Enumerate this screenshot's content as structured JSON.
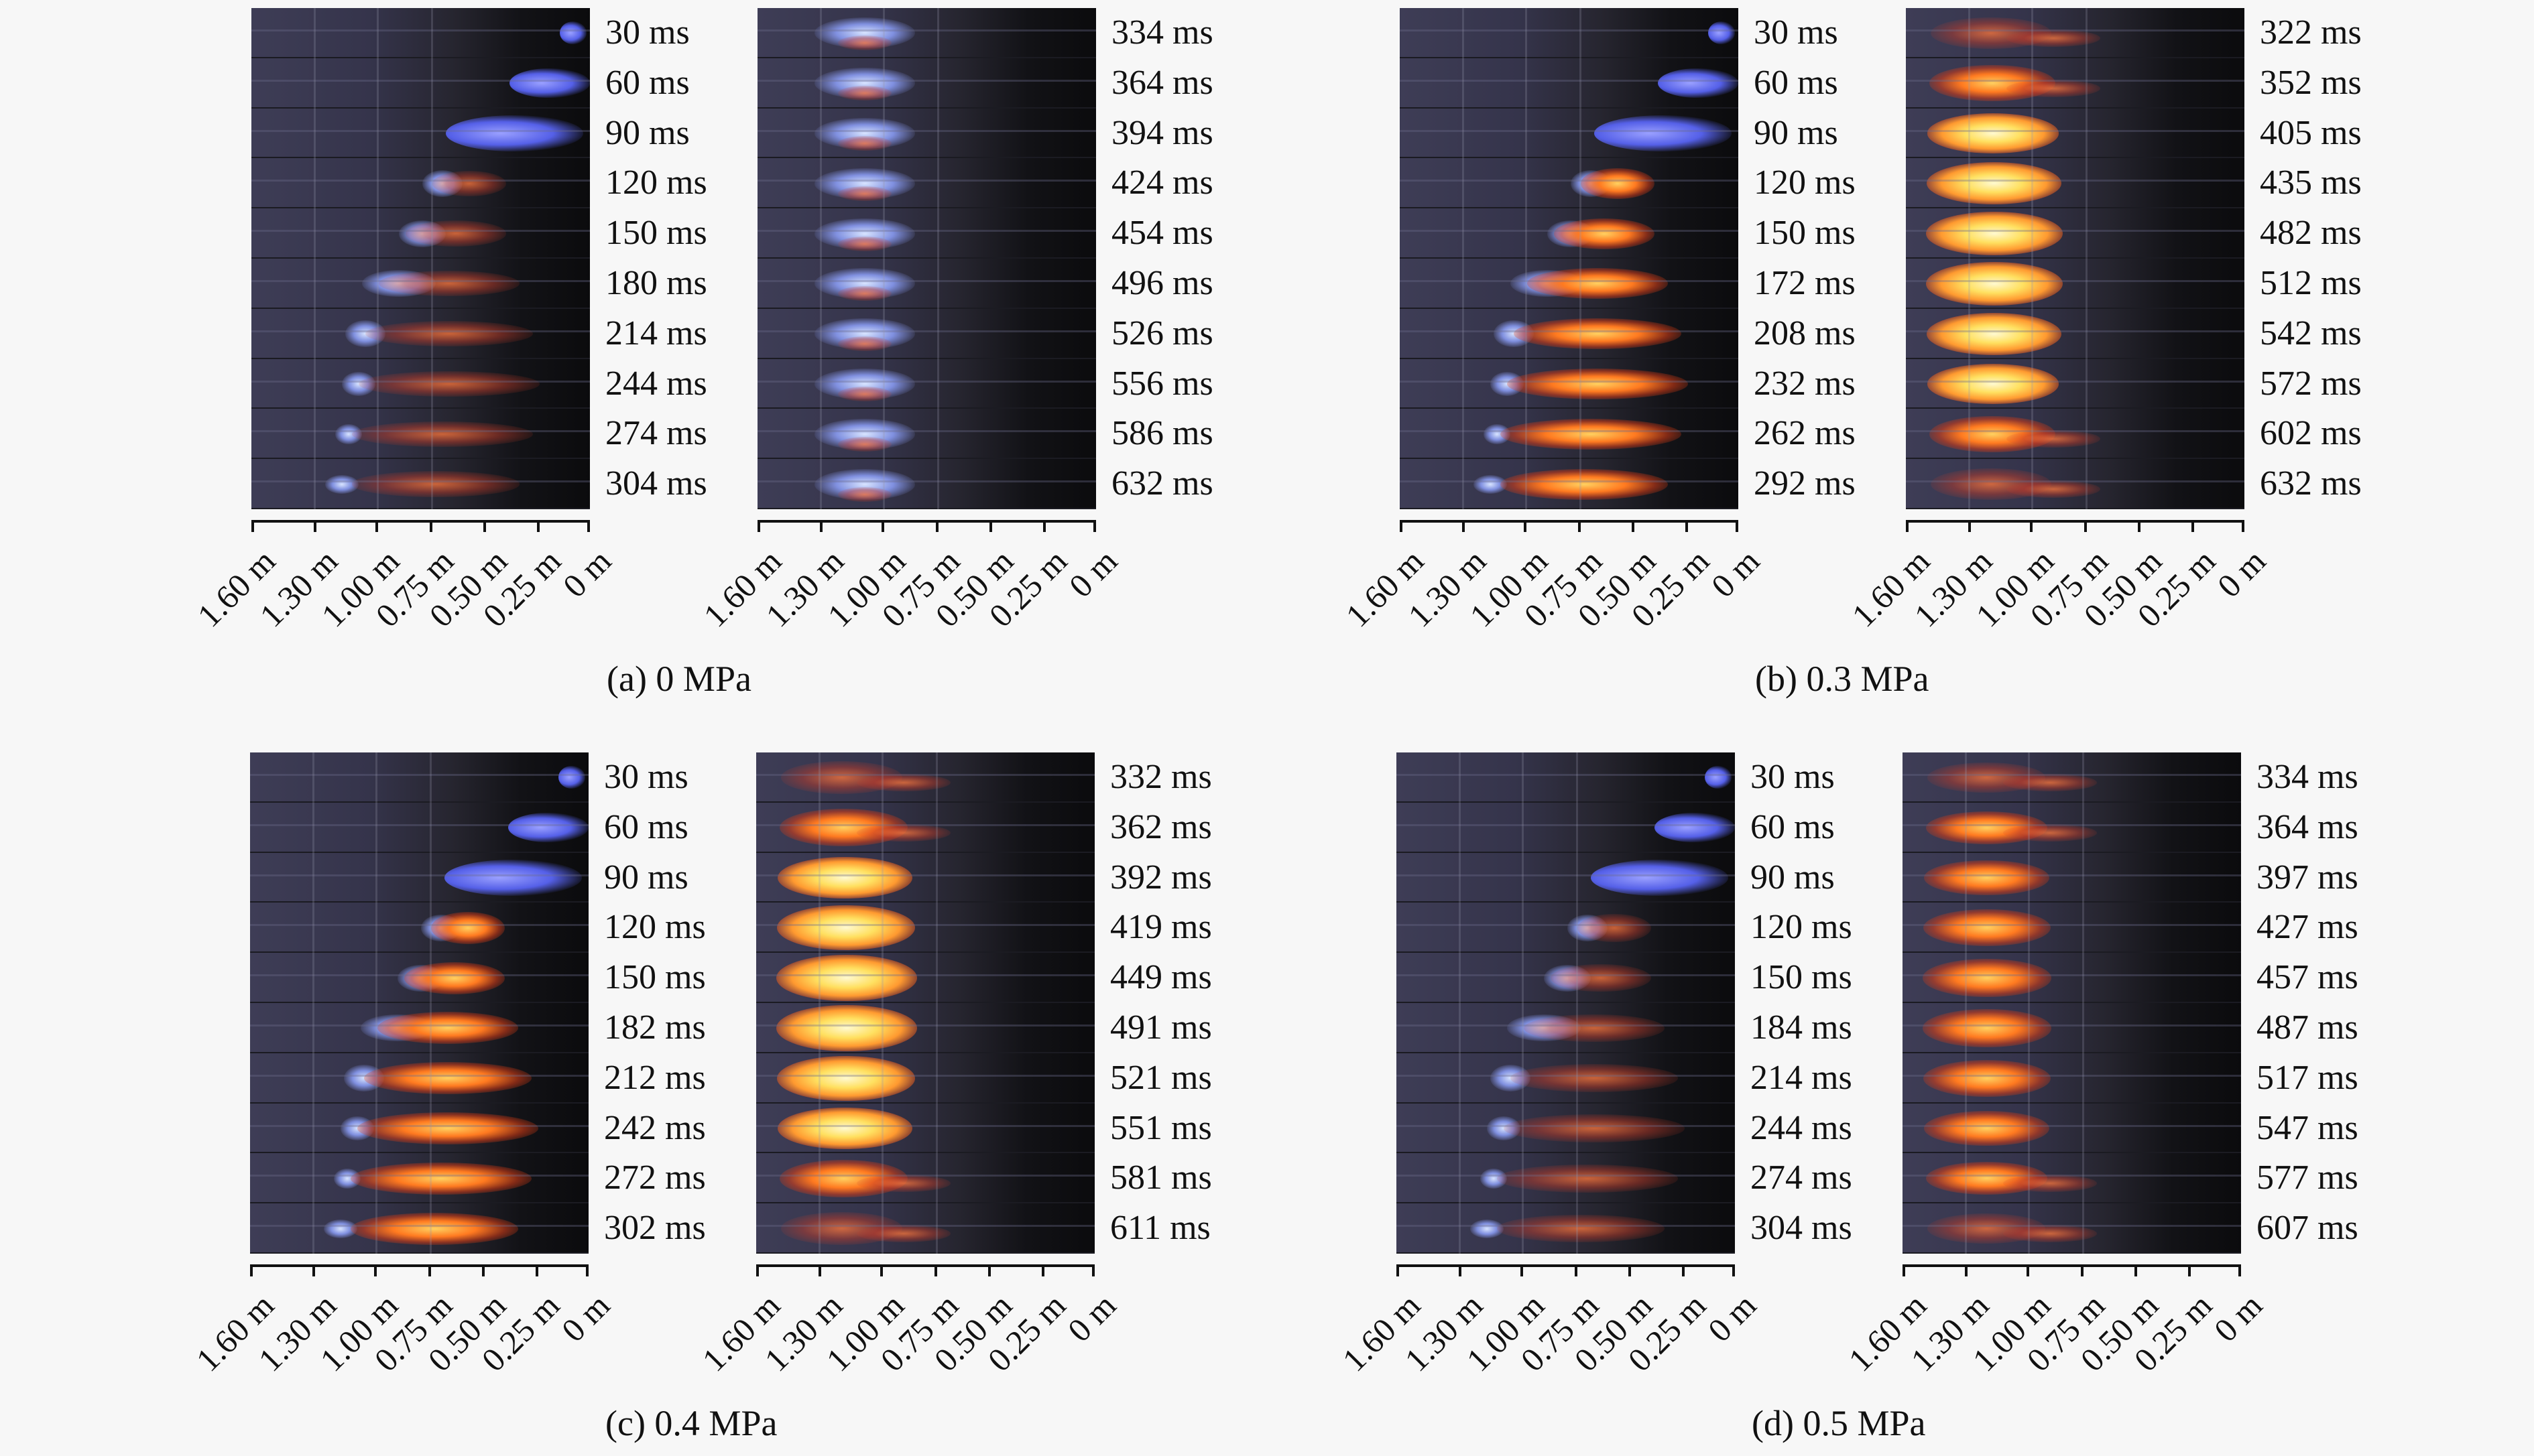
{
  "figure": {
    "axis_ticks": [
      "1.60 m",
      "1.30 m",
      "1.00 m",
      "0.75 m",
      "0.50 m",
      "0.25 m",
      "0 m"
    ],
    "panels": [
      {
        "caption": "(a) 0 MPa",
        "left_times": [
          "30 ms",
          "60 ms",
          "90 ms",
          "120 ms",
          "150 ms",
          "180 ms",
          "214 ms",
          "244 ms",
          "274 ms",
          "304 ms"
        ],
        "right_times": [
          "334 ms",
          "364 ms",
          "394 ms",
          "424 ms",
          "454 ms",
          "496 ms",
          "526 ms",
          "556 ms",
          "586 ms",
          "632 ms"
        ]
      },
      {
        "caption": "(b) 0.3 MPa",
        "left_times": [
          "30 ms",
          "60 ms",
          "90 ms",
          "120 ms",
          "150 ms",
          "172 ms",
          "208 ms",
          "232 ms",
          "262 ms",
          "292 ms"
        ],
        "right_times": [
          "322 ms",
          "352 ms",
          "405 ms",
          "435 ms",
          "482 ms",
          "512 ms",
          "542 ms",
          "572 ms",
          "602 ms",
          "632 ms"
        ]
      },
      {
        "caption": "(c) 0.4 MPa",
        "left_times": [
          "30 ms",
          "60 ms",
          "90 ms",
          "120 ms",
          "150 ms",
          "182 ms",
          "212 ms",
          "242 ms",
          "272 ms",
          "302 ms"
        ],
        "right_times": [
          "332 ms",
          "362 ms",
          "392 ms",
          "419 ms",
          "449 ms",
          "491 ms",
          "521 ms",
          "551 ms",
          "581 ms",
          "611 ms"
        ]
      },
      {
        "caption": "(d) 0.5 MPa",
        "left_times": [
          "30 ms",
          "60 ms",
          "90 ms",
          "120 ms",
          "150 ms",
          "184 ms",
          "214 ms",
          "244 ms",
          "274 ms",
          "304 ms"
        ],
        "right_times": [
          "334 ms",
          "364 ms",
          "397 ms",
          "427 ms",
          "457 ms",
          "487 ms",
          "517 ms",
          "547 ms",
          "577 ms",
          "607 ms"
        ]
      }
    ]
  }
}
